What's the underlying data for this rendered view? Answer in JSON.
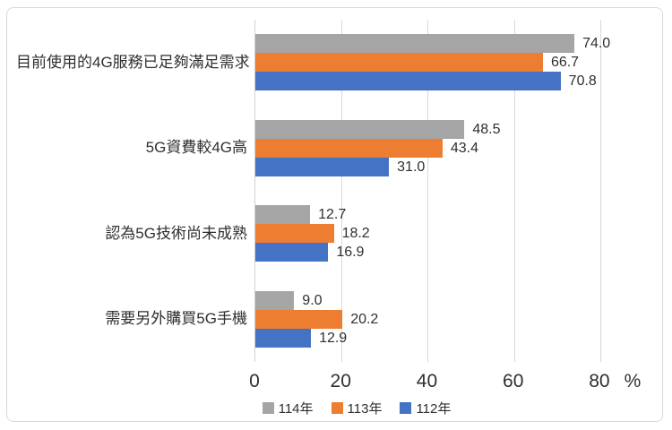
{
  "frame": {
    "background": "#ffffff",
    "border_color": "#d9d9d9"
  },
  "chart_data": {
    "type": "bar",
    "orientation": "horizontal",
    "title": "",
    "categories": [
      "目前使用的4G服務已足夠滿足需求",
      "5G資費較4G高",
      "認為5G技術尚未成熟",
      "需要另外購買5G手機"
    ],
    "series": [
      {
        "name": "114年",
        "color": "#A5A5A5",
        "values": [
          74.0,
          48.5,
          12.7,
          9.0
        ]
      },
      {
        "name": "113年",
        "color": "#ED7D31",
        "values": [
          66.7,
          43.4,
          18.2,
          20.2
        ]
      },
      {
        "name": "112年",
        "color": "#4472C4",
        "values": [
          70.8,
          31.0,
          16.9,
          12.9
        ]
      }
    ],
    "value_labels": [
      [
        "74.0",
        "48.5",
        "12.7",
        "9.0"
      ],
      [
        "66.7",
        "43.4",
        "18.2",
        "20.2"
      ],
      [
        "70.8",
        "31.0",
        "16.9",
        "12.9"
      ]
    ],
    "xlabel": "",
    "ylabel": "",
    "x_unit_label": "%",
    "x_ticks": [
      "0",
      "20",
      "40",
      "60",
      "80"
    ],
    "x_tick_values": [
      0,
      20,
      40,
      60,
      80
    ],
    "xlim": [
      0,
      85
    ],
    "grid": true,
    "gridline_color": "#d9d9d9",
    "legend_position": "bottom",
    "text_color": "#2f2f2f"
  }
}
